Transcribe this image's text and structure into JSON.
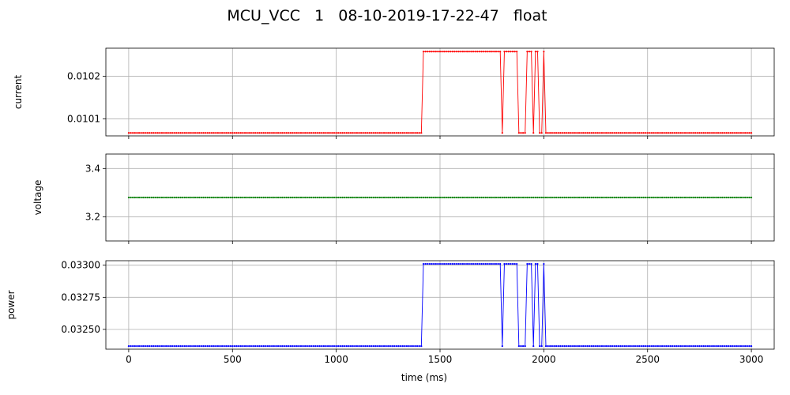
{
  "figure": {
    "title": "MCU_VCC   1   08-10-2019-17-22-47   float"
  },
  "chart_data": [
    {
      "type": "line",
      "ylabel": "current",
      "xlabel": "",
      "color": "#ff0000",
      "xlim": [
        -110,
        3110
      ],
      "ylim": [
        0.01006,
        0.010266
      ],
      "xticks": [
        0,
        500,
        1000,
        1500,
        2000,
        2500,
        3000
      ],
      "xtick_labels_shown": false,
      "yticks": [
        0.0101,
        0.0102
      ],
      "ytick_labels": [
        "0.0101",
        "0.0102"
      ],
      "grid": true,
      "low": 0.010067,
      "high": 0.010258,
      "x_range": [
        0,
        3000
      ],
      "sample_interval_ms": 10,
      "high_intervals": [
        [
          1420,
          1790
        ],
        [
          1810,
          1820
        ],
        [
          1830,
          1840
        ],
        [
          1850,
          1870
        ],
        [
          1920,
          1940
        ],
        [
          1960,
          1970
        ],
        [
          2000,
          2000
        ]
      ]
    },
    {
      "type": "line",
      "ylabel": "voltage",
      "xlabel": "",
      "color": "#008000",
      "xlim": [
        -110,
        3110
      ],
      "ylim": [
        3.1,
        3.46
      ],
      "xticks": [
        0,
        500,
        1000,
        1500,
        2000,
        2500,
        3000
      ],
      "xtick_labels_shown": false,
      "yticks": [
        3.2,
        3.4
      ],
      "ytick_labels": [
        "3.2",
        "3.4"
      ],
      "grid": true,
      "low": 3.28,
      "high": 3.28,
      "x_range": [
        0,
        3000
      ],
      "sample_interval_ms": 10,
      "high_intervals": []
    },
    {
      "type": "line",
      "ylabel": "power",
      "xlabel": "time (ms)",
      "color": "#0000ff",
      "xlim": [
        -110,
        3110
      ],
      "ylim": [
        0.032346,
        0.033035
      ],
      "xticks": [
        0,
        500,
        1000,
        1500,
        2000,
        2500,
        3000
      ],
      "xtick_labels": [
        "0",
        "500",
        "1000",
        "1500",
        "2000",
        "2500",
        "3000"
      ],
      "xtick_labels_shown": true,
      "yticks": [
        0.0325,
        0.03275,
        0.033
      ],
      "ytick_labels": [
        "0.03250",
        "0.03275",
        "0.03300"
      ],
      "grid": true,
      "low": 0.03237,
      "high": 0.03301,
      "x_range": [
        0,
        3000
      ],
      "sample_interval_ms": 10,
      "high_intervals": [
        [
          1420,
          1790
        ],
        [
          1810,
          1820
        ],
        [
          1830,
          1840
        ],
        [
          1850,
          1870
        ],
        [
          1920,
          1940
        ],
        [
          1960,
          1970
        ],
        [
          2000,
          2000
        ]
      ]
    }
  ]
}
